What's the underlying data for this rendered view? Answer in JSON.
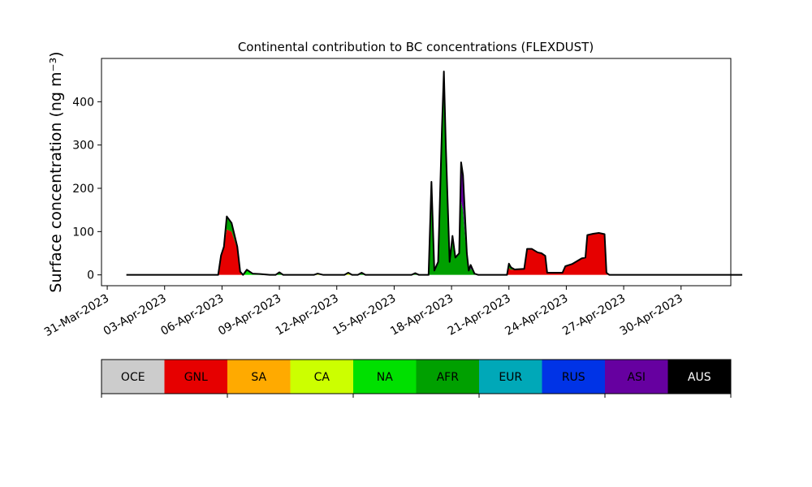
{
  "chart_data": {
    "type": "area",
    "stacked": true,
    "title": "Continental contribution to BC concentrations (FLEXDUST)",
    "ylabel": "Surface concentration (ng m⁻³)",
    "xlabel": "",
    "ylim": [
      -25,
      500
    ],
    "yticks": [
      0,
      100,
      200,
      300,
      400
    ],
    "xticks": [
      {
        "label": "31-Mar-2023",
        "day": 0
      },
      {
        "label": "03-Apr-2023",
        "day": 3
      },
      {
        "label": "06-Apr-2023",
        "day": 6
      },
      {
        "label": "09-Apr-2023",
        "day": 9
      },
      {
        "label": "12-Apr-2023",
        "day": 12
      },
      {
        "label": "15-Apr-2023",
        "day": 15
      },
      {
        "label": "18-Apr-2023",
        "day": 18
      },
      {
        "label": "21-Apr-2023",
        "day": 21
      },
      {
        "label": "24-Apr-2023",
        "day": 24
      },
      {
        "label": "27-Apr-2023",
        "day": 27
      },
      {
        "label": "30-Apr-2023",
        "day": 30
      }
    ],
    "xlim_days": [
      -0.3,
      32.6
    ],
    "grid": false,
    "series": [
      {
        "name": "OCE",
        "color": "#cccccc",
        "values": [
          [
            1,
            0
          ],
          [
            33.2,
            0
          ]
        ]
      },
      {
        "name": "GNL",
        "color": "#e60000",
        "values": [
          [
            1,
            0
          ],
          [
            5.8,
            0
          ],
          [
            5.95,
            45
          ],
          [
            6.1,
            65
          ],
          [
            6.25,
            105
          ],
          [
            6.5,
            100
          ],
          [
            6.8,
            60
          ],
          [
            6.95,
            5
          ],
          [
            7.1,
            0
          ],
          [
            20.9,
            0
          ],
          [
            21,
            16
          ],
          [
            21.1,
            12
          ],
          [
            21.8,
            14
          ],
          [
            21.95,
            60
          ],
          [
            22.2,
            60
          ],
          [
            22.5,
            52
          ],
          [
            22.7,
            50
          ],
          [
            22.9,
            44
          ],
          [
            23,
            5
          ],
          [
            23.8,
            5
          ],
          [
            23.95,
            20
          ],
          [
            24.3,
            25
          ],
          [
            24.8,
            38
          ],
          [
            25,
            40
          ],
          [
            25.1,
            92
          ],
          [
            25.4,
            95
          ],
          [
            25.7,
            97
          ],
          [
            26,
            94
          ],
          [
            26.1,
            5
          ],
          [
            26.25,
            0
          ],
          [
            33.2,
            0
          ]
        ]
      },
      {
        "name": "SA",
        "color": "#ffaa00",
        "values": [
          [
            1,
            0
          ],
          [
            33.2,
            0
          ]
        ]
      },
      {
        "name": "CA",
        "color": "#ccff00",
        "values": [
          [
            1,
            0
          ],
          [
            10.8,
            0
          ],
          [
            11,
            3
          ],
          [
            11.3,
            0
          ],
          [
            12.4,
            0
          ],
          [
            12.6,
            5
          ],
          [
            12.8,
            0
          ],
          [
            33.2,
            0
          ]
        ]
      },
      {
        "name": "NA",
        "color": "#00e000",
        "values": [
          [
            1,
            0
          ],
          [
            7.1,
            0
          ],
          [
            7.3,
            12
          ],
          [
            7.6,
            3
          ],
          [
            8,
            2
          ],
          [
            8.5,
            0
          ],
          [
            33.2,
            0
          ]
        ]
      },
      {
        "name": "AFR",
        "color": "#00a000",
        "values": [
          [
            1,
            0
          ],
          [
            6.1,
            0
          ],
          [
            6.25,
            30
          ],
          [
            6.5,
            20
          ],
          [
            6.8,
            5
          ],
          [
            7.1,
            0
          ],
          [
            8.8,
            0
          ],
          [
            9,
            6
          ],
          [
            9.2,
            0
          ],
          [
            13.1,
            0
          ],
          [
            13.3,
            5
          ],
          [
            13.5,
            0
          ],
          [
            15.9,
            0
          ],
          [
            16.1,
            4
          ],
          [
            16.3,
            0
          ],
          [
            16.8,
            0
          ],
          [
            16.95,
            200
          ],
          [
            17.1,
            10
          ],
          [
            17.3,
            30
          ],
          [
            17.5,
            340
          ],
          [
            17.6,
            440
          ],
          [
            17.7,
            300
          ],
          [
            17.9,
            30
          ],
          [
            18.05,
            90
          ],
          [
            18.2,
            40
          ],
          [
            18.4,
            50
          ],
          [
            18.5,
            170
          ],
          [
            18.6,
            150
          ],
          [
            18.8,
            40
          ],
          [
            18.9,
            10
          ],
          [
            19,
            15
          ],
          [
            19.2,
            3
          ],
          [
            19.4,
            0
          ],
          [
            20.9,
            0
          ],
          [
            21,
            10
          ],
          [
            21.15,
            4
          ],
          [
            21.3,
            0
          ],
          [
            33.2,
            0
          ]
        ]
      },
      {
        "name": "EUR",
        "color": "#00a8b8",
        "values": [
          [
            1,
            0
          ],
          [
            33.2,
            0
          ]
        ]
      },
      {
        "name": "RUS",
        "color": "#0033e6",
        "values": [
          [
            1,
            0
          ],
          [
            33.2,
            0
          ]
        ]
      },
      {
        "name": "ASI",
        "color": "#6600a0",
        "values": [
          [
            1,
            0
          ],
          [
            16.8,
            0
          ],
          [
            16.95,
            15
          ],
          [
            17.1,
            0
          ],
          [
            17.5,
            0
          ],
          [
            17.6,
            30
          ],
          [
            17.7,
            0
          ],
          [
            18.4,
            0
          ],
          [
            18.5,
            90
          ],
          [
            18.6,
            80
          ],
          [
            18.8,
            10
          ],
          [
            18.9,
            0
          ],
          [
            19,
            8
          ],
          [
            19.2,
            0
          ],
          [
            33.2,
            0
          ]
        ]
      },
      {
        "name": "AUS",
        "color": "#000000",
        "values": [
          [
            1,
            0
          ],
          [
            33.2,
            0
          ]
        ]
      }
    ]
  },
  "legend": [
    {
      "label": "OCE",
      "color": "#cccccc",
      "text_color": "#000000"
    },
    {
      "label": "GNL",
      "color": "#e60000",
      "text_color": "#000000"
    },
    {
      "label": "SA",
      "color": "#ffaa00",
      "text_color": "#000000"
    },
    {
      "label": "CA",
      "color": "#ccff00",
      "text_color": "#000000"
    },
    {
      "label": "NA",
      "color": "#00e000",
      "text_color": "#000000"
    },
    {
      "label": "AFR",
      "color": "#00a000",
      "text_color": "#000000"
    },
    {
      "label": "EUR",
      "color": "#00a8b8",
      "text_color": "#000000"
    },
    {
      "label": "RUS",
      "color": "#0033e6",
      "text_color": "#000000"
    },
    {
      "label": "ASI",
      "color": "#6600a0",
      "text_color": "#000000"
    },
    {
      "label": "AUS",
      "color": "#000000",
      "text_color": "#ffffff"
    }
  ]
}
